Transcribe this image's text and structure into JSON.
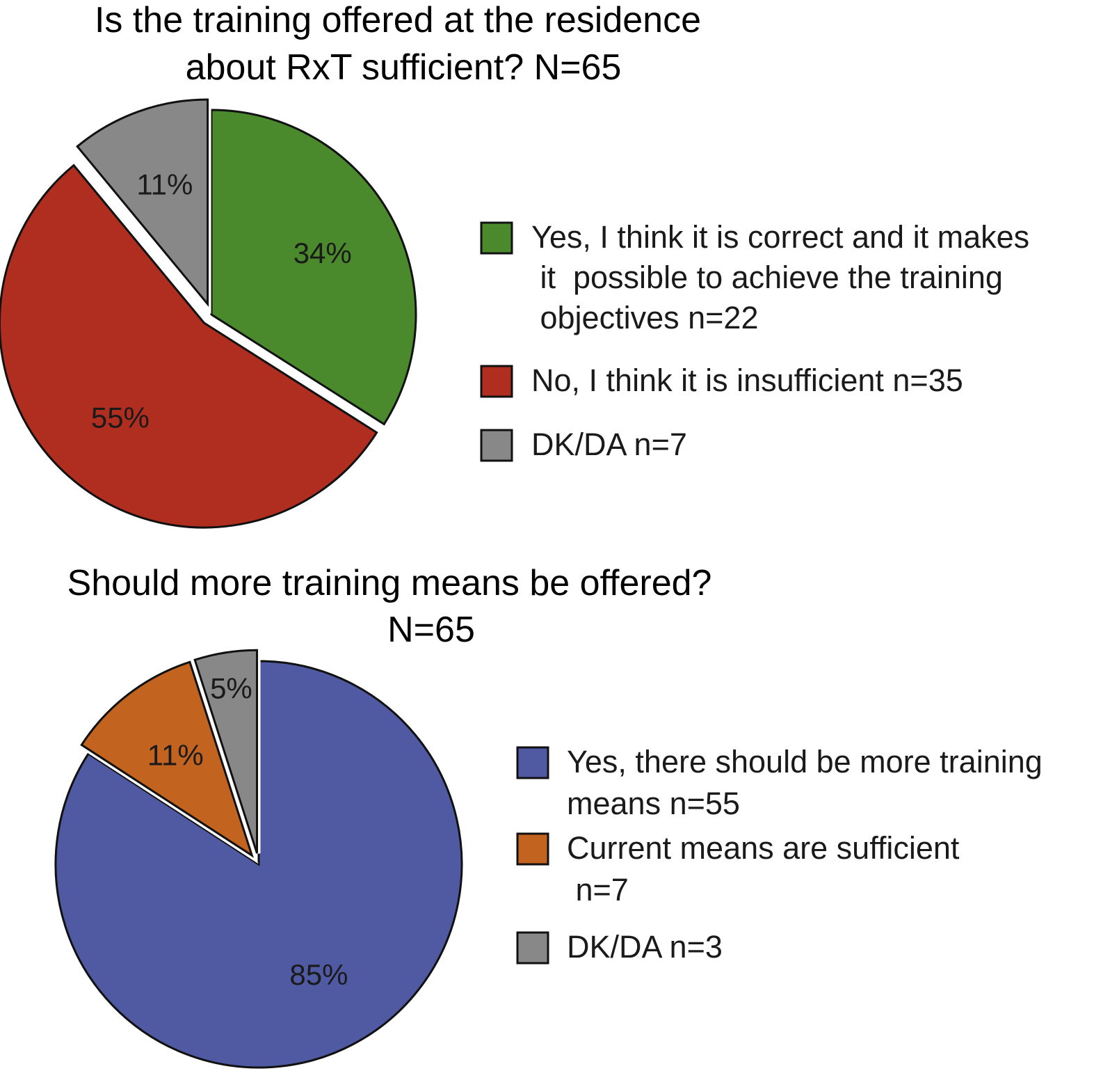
{
  "chart_data": [
    {
      "type": "pie",
      "title": "Is the training offered at the residence about RxT sufficient? N=65",
      "title_lines": [
        "Is the training offered at the residence",
        "about RxT sufficient? N=65"
      ],
      "slices": [
        {
          "label": "Yes, I think it is correct and it makes it possible to achieve the training objectives n=22",
          "legend_lines": [
            "Yes, I think it is correct and it makes",
            " it  possible to achieve the training",
            " objectives n=22"
          ],
          "value": 34,
          "n": 22,
          "pct_label": "34%",
          "color": "#4a8a2c",
          "exploded": false
        },
        {
          "label": "No, I think it is insufficient n=35",
          "legend_lines": [
            "No, I think it is insufficient n=35"
          ],
          "value": 55,
          "n": 35,
          "pct_label": "55%",
          "color": "#b02e1f",
          "exploded": true
        },
        {
          "label": "DK/DA n=7",
          "legend_lines": [
            "DK/DA n=7"
          ],
          "value": 11,
          "n": 7,
          "pct_label": "11%",
          "color": "#888888",
          "exploded": true
        }
      ],
      "legend_placement": "right"
    },
    {
      "type": "pie",
      "title": "Should more training means be offered? N=65",
      "title_lines": [
        "Should more training means be offered?",
        "N=65"
      ],
      "slices": [
        {
          "label": "Yes, there should be more training means n=55",
          "legend_lines": [
            "Yes, there should be more training",
            "means n=55"
          ],
          "value": 85,
          "n": 55,
          "pct_label": "85%",
          "color": "#4f5aa3",
          "exploded": false
        },
        {
          "label": "Current means are sufficient n=7",
          "legend_lines": [
            "Current means are sufficient",
            " n=7"
          ],
          "value": 11,
          "n": 7,
          "pct_label": "11%",
          "color": "#c2631f",
          "exploded": true
        },
        {
          "label": "DK/DA n=3",
          "legend_lines": [
            "DK/DA n=3"
          ],
          "value": 5,
          "n": 3,
          "pct_label": "5%",
          "color": "#888888",
          "exploded": true
        }
      ],
      "legend_placement": "right"
    }
  ]
}
